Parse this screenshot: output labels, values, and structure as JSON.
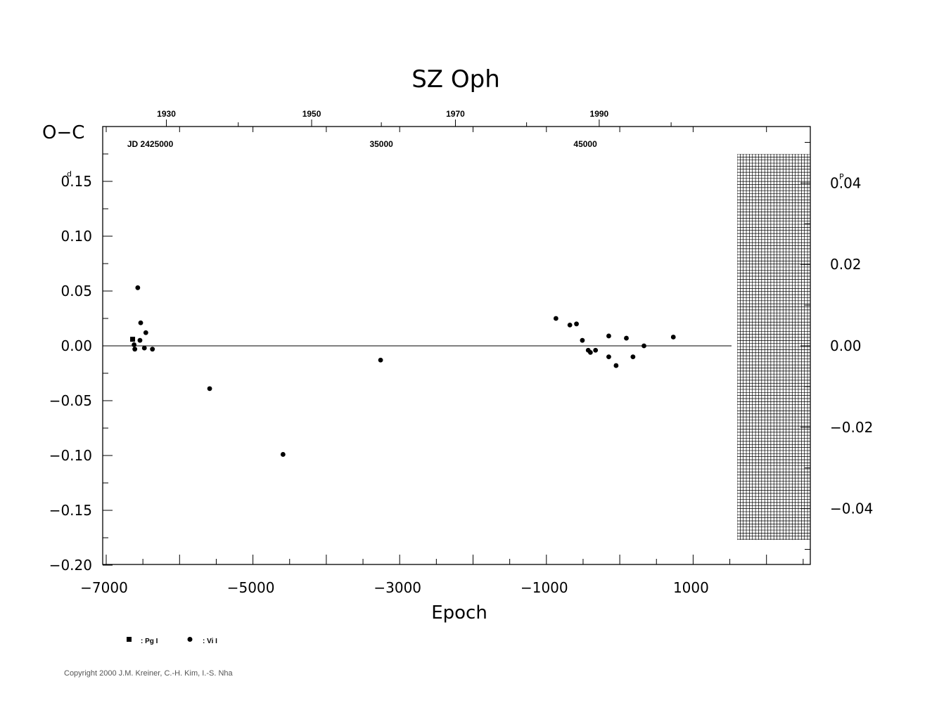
{
  "chart_data": {
    "type": "scatter",
    "title": "SZ Oph",
    "xlabel": "Epoch",
    "ylabel": "O−C",
    "ylabel_unit_left": "d",
    "ylabel_unit_right": "P",
    "xlim": [
      -7000,
      2600
    ],
    "ylim": [
      -0.2,
      0.2
    ],
    "y_right_lim": [
      -0.054,
      0.054
    ],
    "x_ticks": [
      {
        "value": -7000,
        "label": "−7000"
      },
      {
        "value": -5000,
        "label": "−5000"
      },
      {
        "value": -3000,
        "label": "−3000"
      },
      {
        "value": -1000,
        "label": "−1000"
      },
      {
        "value": 1000,
        "label": "1000"
      }
    ],
    "y_ticks_left": [
      {
        "value": 0.15,
        "label": "0.15"
      },
      {
        "value": 0.1,
        "label": "0.10"
      },
      {
        "value": 0.05,
        "label": "0.05"
      },
      {
        "value": 0.0,
        "label": "0.00"
      },
      {
        "value": -0.05,
        "label": "−0.05"
      },
      {
        "value": -0.1,
        "label": "−0.10"
      },
      {
        "value": -0.15,
        "label": "−0.15"
      },
      {
        "value": -0.2,
        "label": "−0.20"
      }
    ],
    "y_ticks_right": [
      {
        "value": 0.04,
        "label": "0.04"
      },
      {
        "value": 0.02,
        "label": "0.02"
      },
      {
        "value": 0.0,
        "label": "0.00"
      },
      {
        "value": -0.02,
        "label": "−0.02"
      },
      {
        "value": -0.04,
        "label": "−0.04"
      }
    ],
    "top_year_labels": [
      {
        "epoch": -6180,
        "label": "1930"
      },
      {
        "epoch": -4200,
        "label": "1950"
      },
      {
        "epoch": -2240,
        "label": "1970"
      },
      {
        "epoch": -280,
        "label": "1990"
      }
    ],
    "jd_labels": [
      {
        "epoch": -6400,
        "label": "JD 2425000"
      },
      {
        "epoch": -3250,
        "label": "35000"
      },
      {
        "epoch": -470,
        "label": "45000"
      }
    ],
    "zero_line": true,
    "hatched_region": {
      "x_start": 1630,
      "y_top": 0.175,
      "y_bottom": -0.177
    },
    "series": [
      {
        "name": "Pg I",
        "marker": "square",
        "points": [
          [
            -6640,
            0.006
          ]
        ]
      },
      {
        "name": "Vi I",
        "marker": "circle",
        "points": [
          [
            -6620,
            0.001
          ],
          [
            -6610,
            -0.003
          ],
          [
            -6570,
            0.053
          ],
          [
            -6540,
            0.005
          ],
          [
            -6530,
            0.021
          ],
          [
            -6480,
            -0.002
          ],
          [
            -6460,
            0.012
          ],
          [
            -6370,
            -0.003
          ],
          [
            -5590,
            -0.039
          ],
          [
            -4590,
            -0.099
          ],
          [
            -3260,
            -0.013
          ],
          [
            -870,
            0.025
          ],
          [
            -680,
            0.019
          ],
          [
            -590,
            0.02
          ],
          [
            -510,
            0.005
          ],
          [
            -430,
            -0.004
          ],
          [
            -400,
            -0.006
          ],
          [
            -330,
            -0.004
          ],
          [
            -150,
            0.009
          ],
          [
            -150,
            -0.01
          ],
          [
            -50,
            -0.018
          ],
          [
            90,
            0.007
          ],
          [
            180,
            -0.01
          ],
          [
            330,
            0.0
          ],
          [
            730,
            0.008
          ]
        ]
      }
    ],
    "legend": {
      "placement": "bottom-left"
    }
  },
  "copyright": "Copyright 2000 J.M. Kreiner, C.-H. Kim, I.-S. Nha"
}
